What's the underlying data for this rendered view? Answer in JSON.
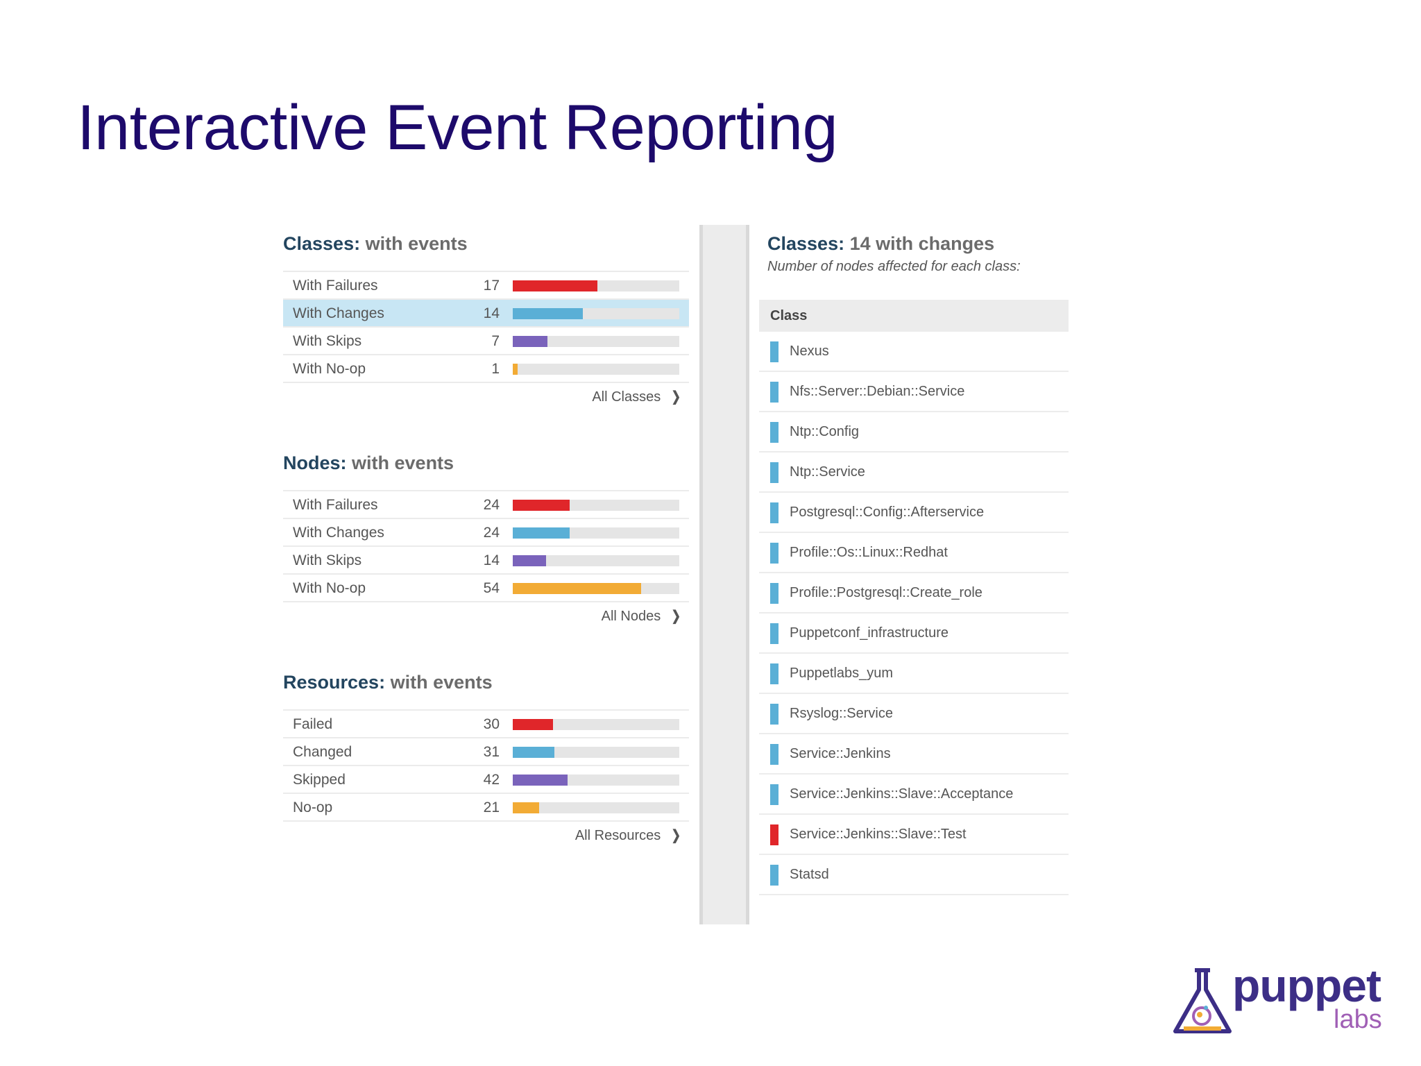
{
  "title": "Interactive Event Reporting",
  "colors": {
    "failure": "#e0262a",
    "change": "#5aafd6",
    "skip": "#7a63bb",
    "noop": "#f2ab35",
    "title": "#1d0a6b"
  },
  "sections": [
    {
      "heading": "Classes:",
      "subheading": "with events",
      "link_label": "All Classes",
      "rows": [
        {
          "label": "With Failures",
          "count": "17",
          "fraction": 0.51,
          "status": "failure"
        },
        {
          "label": "With Changes",
          "count": "14",
          "fraction": 0.42,
          "status": "change",
          "selected": true
        },
        {
          "label": "With Skips",
          "count": "7",
          "fraction": 0.21,
          "status": "skip"
        },
        {
          "label": "With No-op",
          "count": "1",
          "fraction": 0.03,
          "status": "noop"
        }
      ]
    },
    {
      "heading": "Nodes:",
      "subheading": "with events",
      "link_label": "All Nodes",
      "rows": [
        {
          "label": "With Failures",
          "count": "24",
          "fraction": 0.34,
          "status": "failure"
        },
        {
          "label": "With Changes",
          "count": "24",
          "fraction": 0.34,
          "status": "change"
        },
        {
          "label": "With Skips",
          "count": "14",
          "fraction": 0.2,
          "status": "skip"
        },
        {
          "label": "With No-op",
          "count": "54",
          "fraction": 0.77,
          "status": "noop"
        }
      ]
    },
    {
      "heading": "Resources:",
      "subheading": "with events",
      "link_label": "All Resources",
      "rows": [
        {
          "label": "Failed",
          "count": "30",
          "fraction": 0.24,
          "status": "failure"
        },
        {
          "label": "Changed",
          "count": "31",
          "fraction": 0.25,
          "status": "change"
        },
        {
          "label": "Skipped",
          "count": "42",
          "fraction": 0.33,
          "status": "skip"
        },
        {
          "label": "No-op",
          "count": "21",
          "fraction": 0.16,
          "status": "noop"
        }
      ]
    }
  ],
  "detail": {
    "heading": "Classes:",
    "subheading": "14 with changes",
    "description": "Number of nodes affected for each class:",
    "column_header": "Class",
    "classes": [
      {
        "name": "Nexus",
        "status": "change"
      },
      {
        "name": "Nfs::Server::Debian::Service",
        "status": "change"
      },
      {
        "name": "Ntp::Config",
        "status": "change"
      },
      {
        "name": "Ntp::Service",
        "status": "change"
      },
      {
        "name": "Postgresql::Config::Afterservice",
        "status": "change"
      },
      {
        "name": "Profile::Os::Linux::Redhat",
        "status": "change"
      },
      {
        "name": "Profile::Postgresql::Create_role",
        "status": "change"
      },
      {
        "name": "Puppetconf_infrastructure",
        "status": "change"
      },
      {
        "name": "Puppetlabs_yum",
        "status": "change"
      },
      {
        "name": "Rsyslog::Service",
        "status": "change"
      },
      {
        "name": "Service::Jenkins",
        "status": "change"
      },
      {
        "name": "Service::Jenkins::Slave::Acceptance",
        "status": "change"
      },
      {
        "name": "Service::Jenkins::Slave::Test",
        "status": "failure"
      },
      {
        "name": "Statsd",
        "status": "change"
      }
    ]
  },
  "logo": {
    "wordmark": "puppet",
    "sub": "labs",
    "icon": "flask-logo-icon"
  }
}
